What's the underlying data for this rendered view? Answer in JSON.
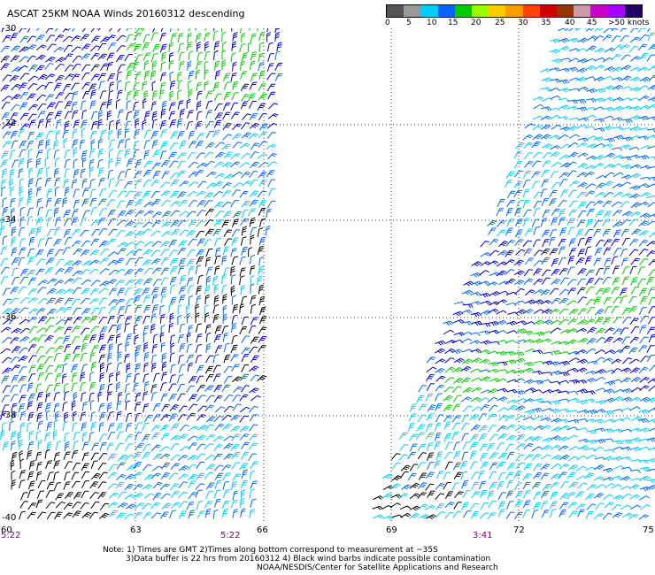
{
  "title": "ASCAT 25KM NOAA Winds 20160312 descending",
  "colorbar": {
    "colors": [
      "#555555",
      "#999999",
      "#00ccff",
      "#0066ff",
      "#00cc00",
      "#99ff00",
      "#ffcc00",
      "#ff9900",
      "#ff4400",
      "#cc0000",
      "#993300",
      "#cc99aa",
      "#cc00cc",
      "#aa00ff",
      "#220066"
    ],
    "labels": [
      "0",
      "5",
      "10",
      "15",
      "20",
      "25",
      "30",
      "35",
      "40",
      "45",
      ">50 knots"
    ]
  },
  "map": {
    "lat_labels": [
      "-30",
      "-32",
      "-34",
      "-36",
      "-38",
      "-40"
    ],
    "lon_labels": [
      "60",
      "63",
      "66",
      "69",
      "72",
      "75"
    ],
    "time_labels": [
      "5:22",
      "5:22",
      "3:41"
    ],
    "barb_colors": {
      "dark_blue": "#0000cc",
      "blue": "#0066ff",
      "cyan": "#00ccff",
      "green": "#00cc00",
      "black": "#000000"
    }
  },
  "notes": [
    "Note: 1) Times are GMT 2)Times along bottom correspond to measurement at ~35S",
    "3)Data buffer is 22 hrs from 20160312 4) Black wind barbs indicate possible contamination",
    "NOAA/NESDIS/Center for Satellite Applications and Research"
  ]
}
